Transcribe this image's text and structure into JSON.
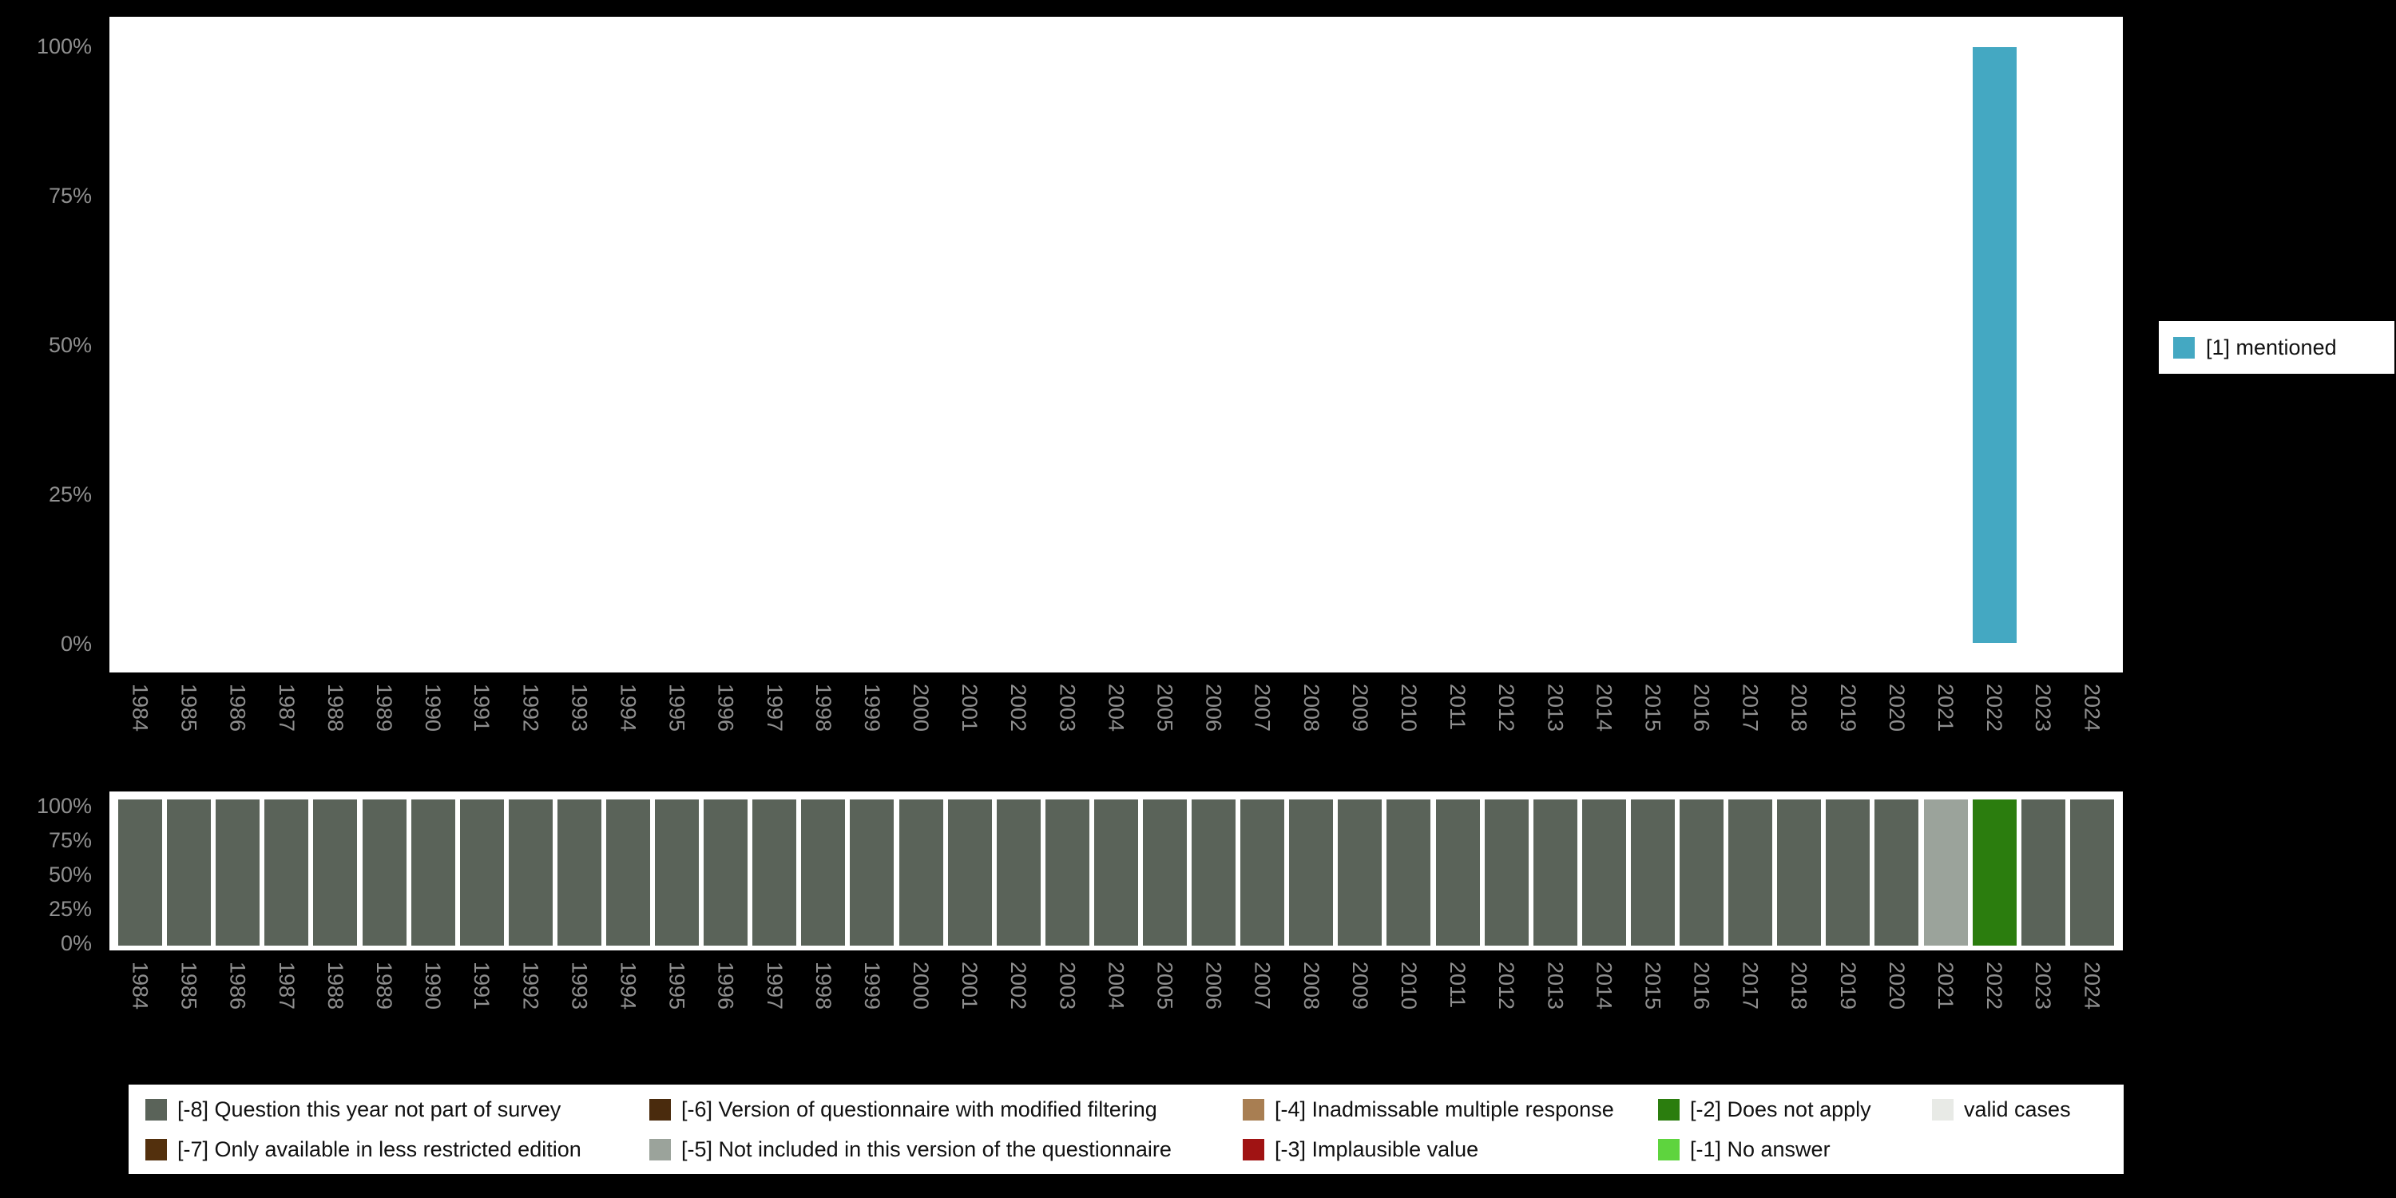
{
  "colors": {
    "page_background": "#000000",
    "plot_background": "#ffffff",
    "axis_text": "#8f8f8f"
  },
  "chart_data": [
    {
      "type": "bar",
      "title": "",
      "xlabel": "",
      "ylabel": "",
      "ylim": [
        0,
        100
      ],
      "yticks": [
        "100%",
        "75%",
        "50%",
        "25%",
        "0%"
      ],
      "grid": false,
      "x_label_rotation": 90,
      "legend_position": "right",
      "x": [
        "1984",
        "1985",
        "1986",
        "1987",
        "1988",
        "1989",
        "1990",
        "1991",
        "1992",
        "1993",
        "1994",
        "1995",
        "1996",
        "1997",
        "1998",
        "1999",
        "2000",
        "2001",
        "2002",
        "2003",
        "2004",
        "2005",
        "2006",
        "2007",
        "2008",
        "2009",
        "2010",
        "2011",
        "2012",
        "2013",
        "2014",
        "2015",
        "2016",
        "2017",
        "2018",
        "2019",
        "2020",
        "2021",
        "2022",
        "2023",
        "2024"
      ],
      "series": [
        {
          "name": "[1] mentioned",
          "color": "#44a8c2",
          "values": [
            0,
            0,
            0,
            0,
            0,
            0,
            0,
            0,
            0,
            0,
            0,
            0,
            0,
            0,
            0,
            0,
            0,
            0,
            0,
            0,
            0,
            0,
            0,
            0,
            0,
            0,
            0,
            0,
            0,
            0,
            0,
            0,
            0,
            0,
            0,
            0,
            0,
            0,
            100,
            0,
            0
          ]
        }
      ],
      "legend": {
        "position": "right",
        "items": [
          {
            "label": "[1] mentioned",
            "color": "#44a8c2"
          }
        ]
      }
    },
    {
      "type": "stacked-bar-100",
      "title": "",
      "xlabel": "",
      "ylabel": "",
      "ylim": [
        0,
        100
      ],
      "yticks": [
        "100%",
        "75%",
        "50%",
        "25%",
        "0%"
      ],
      "grid": false,
      "x_label_rotation": 90,
      "x": [
        "1984",
        "1985",
        "1986",
        "1987",
        "1988",
        "1989",
        "1990",
        "1991",
        "1992",
        "1993",
        "1994",
        "1995",
        "1996",
        "1997",
        "1998",
        "1999",
        "2000",
        "2001",
        "2002",
        "2003",
        "2004",
        "2005",
        "2006",
        "2007",
        "2008",
        "2009",
        "2010",
        "2011",
        "2012",
        "2013",
        "2014",
        "2015",
        "2016",
        "2017",
        "2018",
        "2019",
        "2020",
        "2021",
        "2022",
        "2023",
        "2024"
      ],
      "categories": [
        "-8",
        "-8",
        "-8",
        "-8",
        "-8",
        "-8",
        "-8",
        "-8",
        "-8",
        "-8",
        "-8",
        "-8",
        "-8",
        "-8",
        "-8",
        "-8",
        "-8",
        "-8",
        "-8",
        "-8",
        "-8",
        "-8",
        "-8",
        "-8",
        "-8",
        "-8",
        "-8",
        "-8",
        "-8",
        "-8",
        "-8",
        "-8",
        "-8",
        "-8",
        "-8",
        "-8",
        "-8",
        "-5",
        "-2",
        "-8",
        "-8"
      ],
      "values_per_year": [
        100,
        100,
        100,
        100,
        100,
        100,
        100,
        100,
        100,
        100,
        100,
        100,
        100,
        100,
        100,
        100,
        100,
        100,
        100,
        100,
        100,
        100,
        100,
        100,
        100,
        100,
        100,
        100,
        100,
        100,
        100,
        100,
        100,
        100,
        100,
        100,
        100,
        100,
        100,
        100,
        100
      ]
    }
  ],
  "legend2": {
    "rows": [
      [
        {
          "code": "-8",
          "label": "[-8] Question this year not part of survey",
          "color": "#5a6359"
        },
        {
          "code": "-6",
          "label": "[-6] Version of questionnaire with modified filtering",
          "color": "#4a2b0d"
        },
        {
          "code": "-4",
          "label": "[-4] Inadmissable multiple response",
          "color": "#a87e52"
        },
        {
          "code": "-2",
          "label": "[-2] Does not apply",
          "color": "#2b7d0e"
        },
        {
          "code": "valid",
          "label": "valid cases",
          "color": "#e8eae6"
        }
      ],
      [
        {
          "code": "-7",
          "label": "[-7] Only available in less restricted edition",
          "color": "#53300d"
        },
        {
          "code": "-5",
          "label": "[-5] Not included in this version of the questionnaire",
          "color": "#9ba39b"
        },
        {
          "code": "-3",
          "label": "[-3] Implausible value",
          "color": "#a01313"
        },
        {
          "code": "-1",
          "label": "[-1] No answer",
          "color": "#5ed43e"
        }
      ]
    ]
  }
}
